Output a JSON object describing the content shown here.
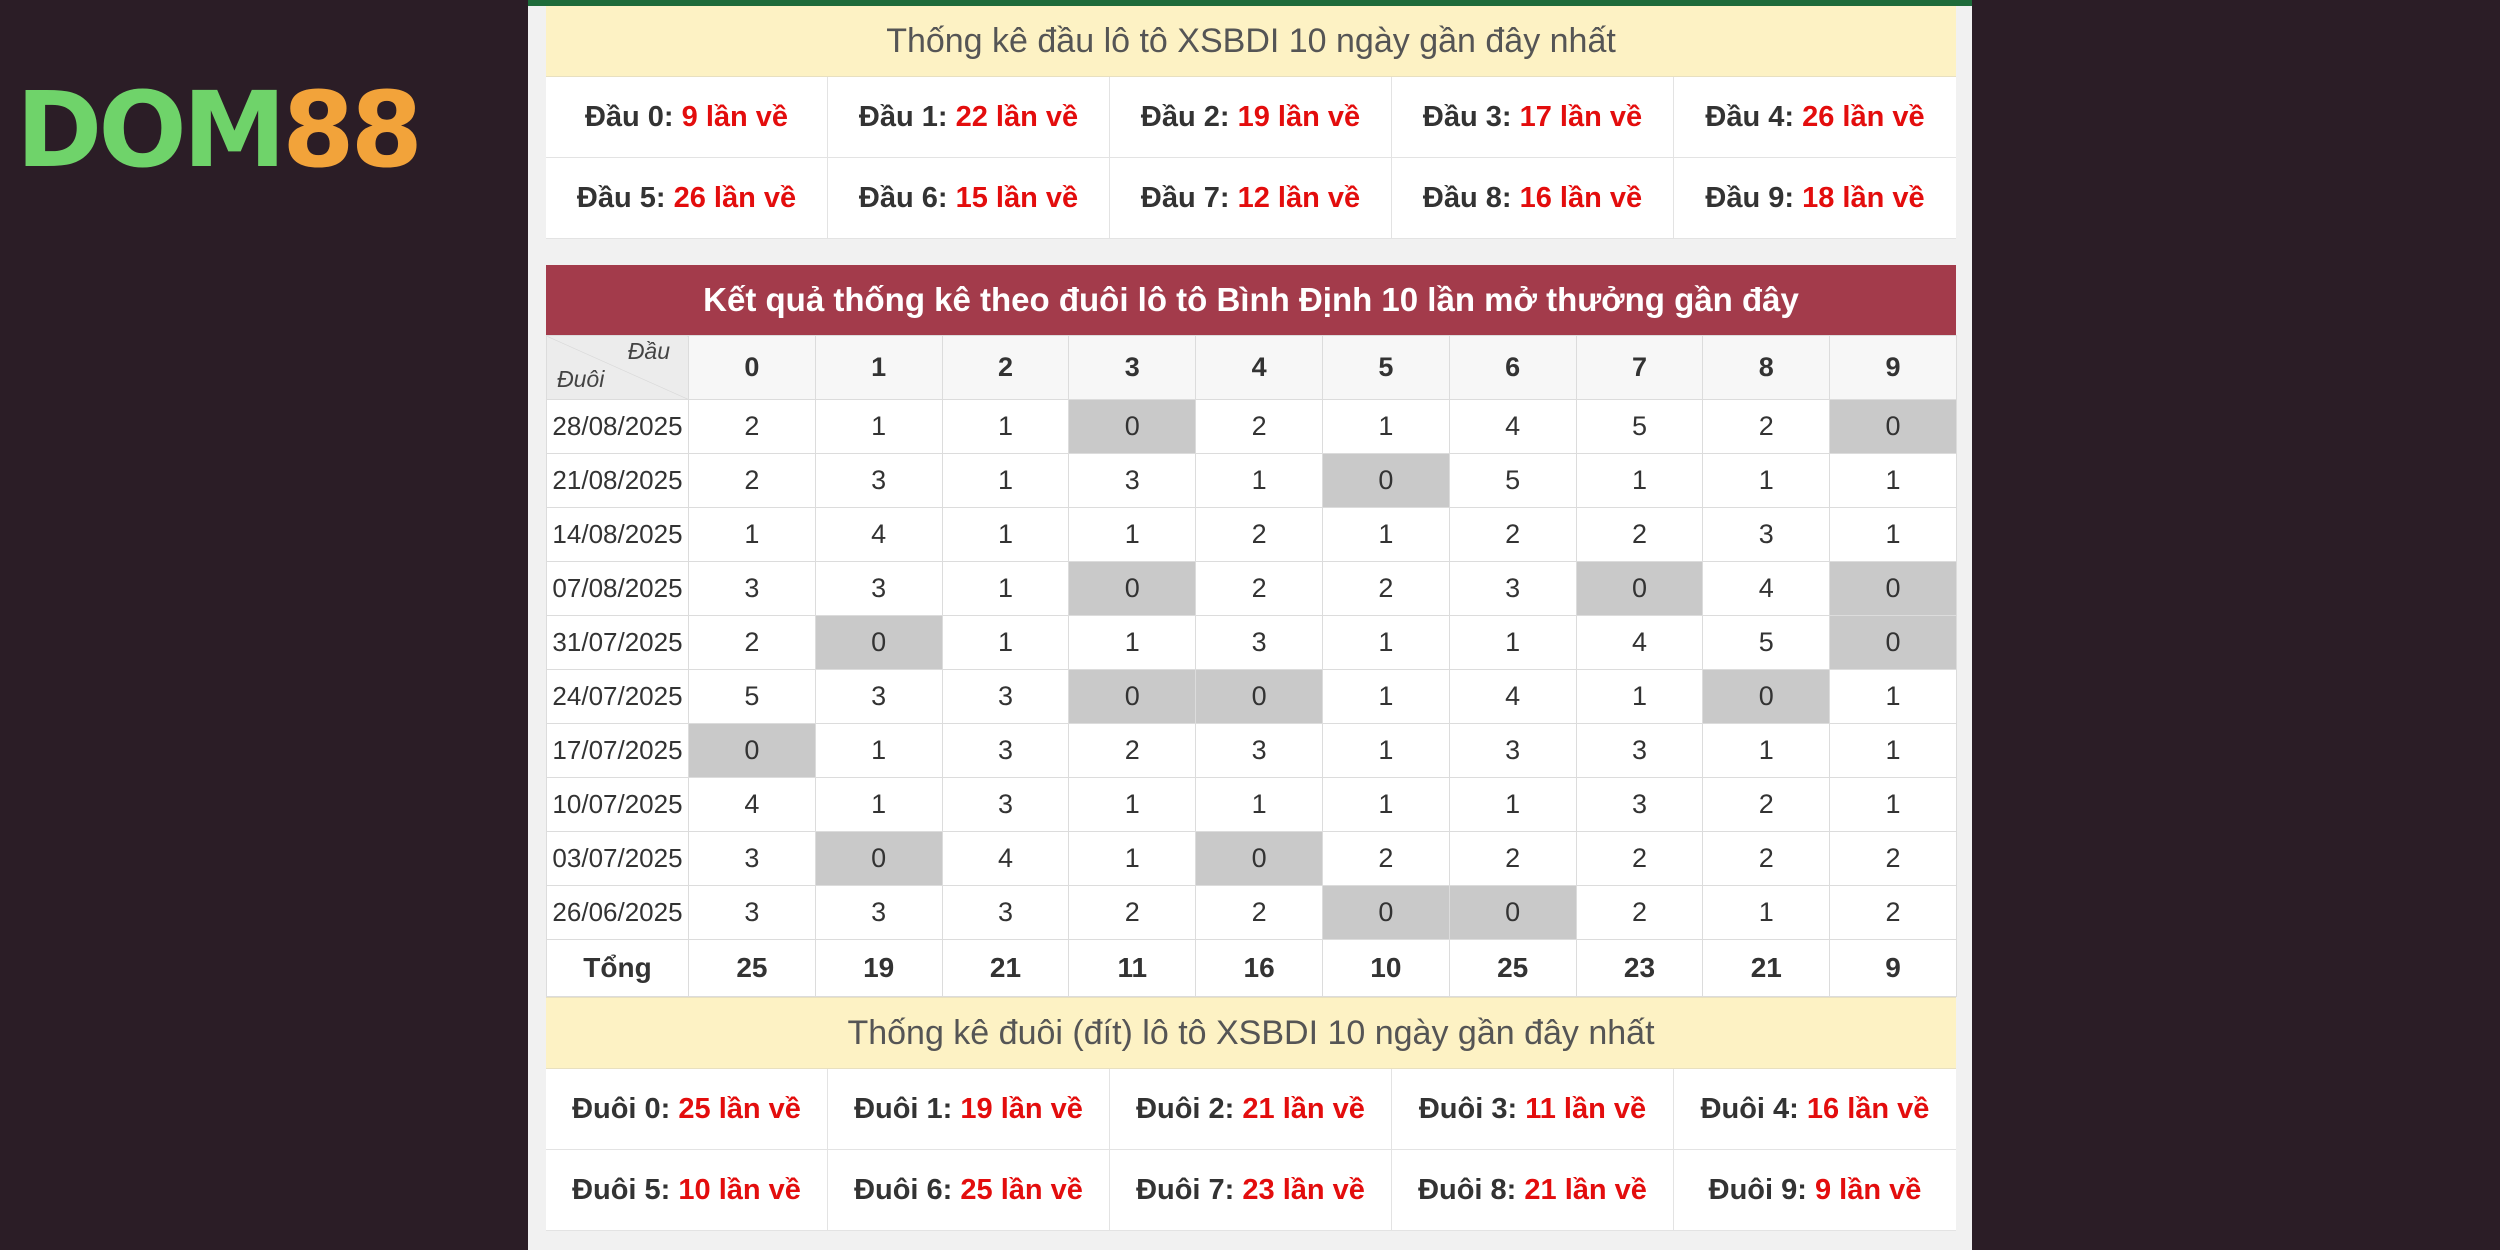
{
  "logo": {
    "text_main": "DOM",
    "text_accent": "88"
  },
  "head_section": {
    "title": "Thống kê đầu lô tô XSBDI 10 ngày gần đây nhất",
    "items": [
      {
        "label": "Đầu 0:",
        "value": "9 lần về"
      },
      {
        "label": "Đầu 1:",
        "value": "22 lần về"
      },
      {
        "label": "Đầu 2:",
        "value": "19 lần về"
      },
      {
        "label": "Đầu 3:",
        "value": "17 lần về"
      },
      {
        "label": "Đầu 4:",
        "value": "26 lần về"
      },
      {
        "label": "Đầu 5:",
        "value": "26 lần về"
      },
      {
        "label": "Đầu 6:",
        "value": "15 lần về"
      },
      {
        "label": "Đầu 7:",
        "value": "12 lần về"
      },
      {
        "label": "Đầu 8:",
        "value": "16 lần về"
      },
      {
        "label": "Đầu 9:",
        "value": "18 lần về"
      }
    ]
  },
  "table": {
    "title": "Kết quả thống kê theo đuôi lô tô Bình Định 10 lần mở thưởng gần đây",
    "corner_top": "Đầu",
    "corner_bottom": "Đuôi",
    "columns": [
      "0",
      "1",
      "2",
      "3",
      "4",
      "5",
      "6",
      "7",
      "8",
      "9"
    ],
    "rows": [
      {
        "date": "28/08/2025",
        "values": [
          2,
          1,
          1,
          0,
          2,
          1,
          4,
          5,
          2,
          0
        ]
      },
      {
        "date": "21/08/2025",
        "values": [
          2,
          3,
          1,
          3,
          1,
          0,
          5,
          1,
          1,
          1
        ]
      },
      {
        "date": "14/08/2025",
        "values": [
          1,
          4,
          1,
          1,
          2,
          1,
          2,
          2,
          3,
          1
        ]
      },
      {
        "date": "07/08/2025",
        "values": [
          3,
          3,
          1,
          0,
          2,
          2,
          3,
          0,
          4,
          0
        ]
      },
      {
        "date": "31/07/2025",
        "values": [
          2,
          0,
          1,
          1,
          3,
          1,
          1,
          4,
          5,
          0
        ]
      },
      {
        "date": "24/07/2025",
        "values": [
          5,
          3,
          3,
          0,
          0,
          1,
          4,
          1,
          0,
          1
        ]
      },
      {
        "date": "17/07/2025",
        "values": [
          0,
          1,
          3,
          2,
          3,
          1,
          3,
          3,
          1,
          1
        ]
      },
      {
        "date": "10/07/2025",
        "values": [
          4,
          1,
          3,
          1,
          1,
          1,
          1,
          3,
          2,
          1
        ]
      },
      {
        "date": "03/07/2025",
        "values": [
          3,
          0,
          4,
          1,
          0,
          2,
          2,
          2,
          2,
          2
        ]
      },
      {
        "date": "26/06/2025",
        "values": [
          3,
          3,
          3,
          2,
          2,
          0,
          0,
          2,
          1,
          2
        ]
      }
    ],
    "total_label": "Tổng",
    "totals": [
      25,
      19,
      21,
      11,
      16,
      10,
      25,
      23,
      21,
      9
    ]
  },
  "tail_section": {
    "title": "Thống kê đuôi (đít) lô tô XSBDI 10 ngày gần đây nhất",
    "items": [
      {
        "label": "Đuôi 0:",
        "value": "25 lần về"
      },
      {
        "label": "Đuôi 1:",
        "value": "19 lần về"
      },
      {
        "label": "Đuôi 2:",
        "value": "21 lần về"
      },
      {
        "label": "Đuôi 3:",
        "value": "11 lần về"
      },
      {
        "label": "Đuôi 4:",
        "value": "16 lần về"
      },
      {
        "label": "Đuôi 5:",
        "value": "10 lần về"
      },
      {
        "label": "Đuôi 6:",
        "value": "25 lần về"
      },
      {
        "label": "Đuôi 7:",
        "value": "23 lần về"
      },
      {
        "label": "Đuôi 8:",
        "value": "21 lần về"
      },
      {
        "label": "Đuôi 9:",
        "value": "9 lần về"
      }
    ]
  },
  "colors": {
    "header_red": "#a33b4b",
    "stat_bar_bg": "#fdf2c4",
    "value_red": "#e30d0d",
    "zero_cell": "#c9c9c9",
    "page_bg": "#2b1d26"
  }
}
